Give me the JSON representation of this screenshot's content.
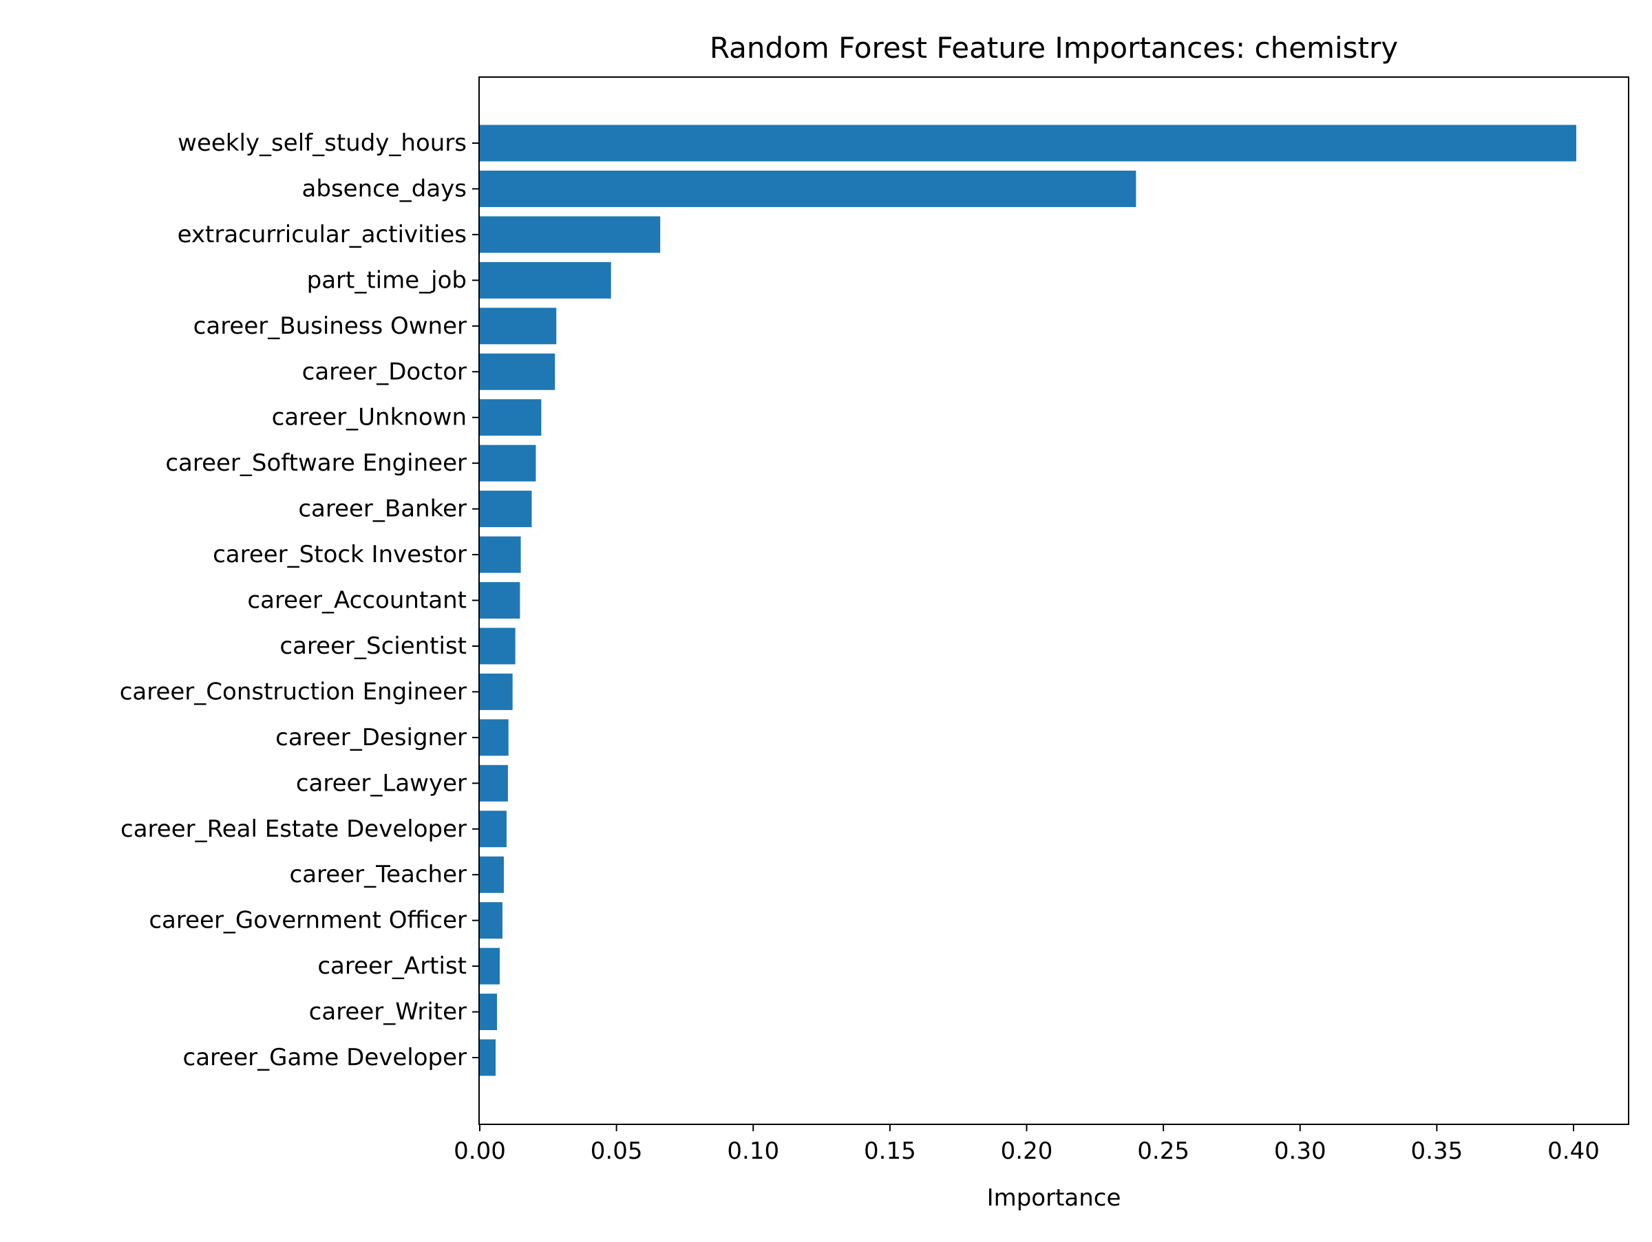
{
  "chart_data": {
    "type": "bar",
    "orientation": "horizontal",
    "title": "Random Forest Feature Importances: chemistry",
    "xlabel": "Importance",
    "ylabel": "",
    "xlim": [
      0.0,
      0.42
    ],
    "grid": false,
    "legend": "none",
    "bar_color": "#1f77b4",
    "categories": [
      "weekly_self_study_hours",
      "absence_days",
      "extracurricular_activities",
      "part_time_job",
      "career_Business Owner",
      "career_Doctor",
      "career_Unknown",
      "career_Software Engineer",
      "career_Banker",
      "career_Stock Investor",
      "career_Accountant",
      "career_Scientist",
      "career_Construction Engineer",
      "career_Designer",
      "career_Lawyer",
      "career_Real Estate Developer",
      "career_Teacher",
      "career_Government Officer",
      "career_Artist",
      "career_Writer",
      "career_Game Developer"
    ],
    "values": [
      0.401,
      0.24,
      0.066,
      0.048,
      0.028,
      0.0275,
      0.0225,
      0.0205,
      0.019,
      0.015,
      0.0147,
      0.013,
      0.012,
      0.0105,
      0.0103,
      0.0098,
      0.0088,
      0.0083,
      0.0073,
      0.0063,
      0.0058
    ],
    "xticks": [
      "0.00",
      "0.05",
      "0.10",
      "0.15",
      "0.20",
      "0.25",
      "0.30",
      "0.35",
      "0.40"
    ]
  }
}
